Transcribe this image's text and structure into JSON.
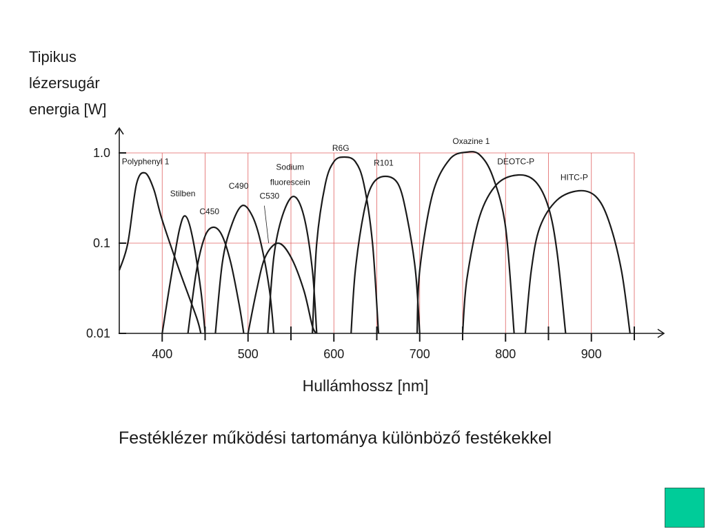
{
  "page": {
    "caption": "Festéklézer működési tartománya különböző festékekkel",
    "corner_box_color": "#00cc99"
  },
  "chart_data": {
    "type": "line",
    "ylabel_lines": [
      "Tipikus",
      "lézersugár",
      "energia [W]"
    ],
    "xlabel": "Hullámhossz [nm]",
    "x_range": [
      350,
      950
    ],
    "y_scale": "log",
    "y_range": [
      0.01,
      1.0
    ],
    "x_ticks": [
      400,
      500,
      600,
      700,
      800,
      900
    ],
    "x_minor_ticks": [
      450,
      550,
      650,
      750,
      850
    ],
    "x_tick_labels": [
      "400",
      "500",
      "600",
      "700",
      "800",
      "900"
    ],
    "y_ticks": [
      0.01,
      0.1,
      1.0
    ],
    "y_tick_labels": [
      "0.01",
      "0.1",
      "1.0"
    ],
    "grid": true,
    "grid_color": "#e06060",
    "curve_color": "#1a1a1a",
    "series": [
      {
        "name": "Polyphenyl 1",
        "x": [
          350,
          360,
          370,
          380,
          390,
          400,
          420,
          440,
          445
        ],
        "y": [
          0.05,
          0.1,
          0.45,
          0.6,
          0.4,
          0.18,
          0.05,
          0.015,
          0.01
        ]
      },
      {
        "name": "Stilben",
        "x": [
          400,
          410,
          420,
          427,
          435,
          445,
          450
        ],
        "y": [
          0.01,
          0.04,
          0.14,
          0.2,
          0.12,
          0.03,
          0.01
        ]
      },
      {
        "name": "C450",
        "x": [
          430,
          440,
          450,
          460,
          470,
          480,
          490,
          495
        ],
        "y": [
          0.01,
          0.05,
          0.12,
          0.15,
          0.12,
          0.06,
          0.02,
          0.01
        ]
      },
      {
        "name": "C490",
        "x": [
          462,
          470,
          480,
          493,
          505,
          515,
          525,
          530
        ],
        "y": [
          0.01,
          0.06,
          0.15,
          0.26,
          0.2,
          0.1,
          0.03,
          0.01
        ]
      },
      {
        "name": "C530",
        "x": [
          500,
          510,
          520,
          535,
          550,
          565,
          575,
          580
        ],
        "y": [
          0.01,
          0.03,
          0.07,
          0.1,
          0.07,
          0.03,
          0.012,
          0.01
        ]
      },
      {
        "name": "Sodium fluorescein",
        "x": [
          523,
          530,
          540,
          553,
          565,
          575,
          580
        ],
        "y": [
          0.01,
          0.07,
          0.2,
          0.33,
          0.2,
          0.05,
          0.01
        ]
      },
      {
        "name": "R6G",
        "x": [
          575,
          580,
          590,
          600,
          612,
          625,
          635,
          645,
          652
        ],
        "y": [
          0.01,
          0.1,
          0.45,
          0.8,
          0.9,
          0.8,
          0.45,
          0.1,
          0.01
        ]
      },
      {
        "name": "R101",
        "x": [
          620,
          625,
          635,
          645,
          660,
          675,
          685,
          695,
          700
        ],
        "y": [
          0.01,
          0.05,
          0.22,
          0.45,
          0.55,
          0.45,
          0.2,
          0.05,
          0.01
        ]
      },
      {
        "name": "Oxazine 1",
        "x": [
          697,
          700,
          715,
          735,
          755,
          770,
          785,
          800,
          810
        ],
        "y": [
          0.01,
          0.05,
          0.35,
          0.85,
          1.02,
          0.95,
          0.55,
          0.15,
          0.01
        ]
      },
      {
        "name": "DEOTC-P",
        "x": [
          750,
          755,
          770,
          790,
          815,
          835,
          850,
          860,
          870
        ],
        "y": [
          0.01,
          0.04,
          0.2,
          0.45,
          0.57,
          0.48,
          0.25,
          0.08,
          0.01
        ]
      },
      {
        "name": "HITC-P",
        "x": [
          823,
          830,
          840,
          860,
          885,
          905,
          920,
          935,
          945
        ],
        "y": [
          0.01,
          0.05,
          0.15,
          0.3,
          0.38,
          0.33,
          0.18,
          0.05,
          0.01
        ]
      }
    ],
    "annotations": [
      {
        "text": "Polyphenyl 1",
        "x": 353,
        "y": 0.75,
        "anchor": "start"
      },
      {
        "text": "Stilben",
        "x": 424,
        "y": 0.33,
        "anchor": "middle"
      },
      {
        "text": "C450",
        "x": 455,
        "y": 0.21,
        "anchor": "middle"
      },
      {
        "text": "C490",
        "x": 489,
        "y": 0.4,
        "anchor": "middle"
      },
      {
        "text": "C530",
        "x": 525,
        "y": 0.31,
        "anchor": "middle"
      },
      {
        "text": "Sodium",
        "x": 549,
        "y": 0.65,
        "anchor": "middle"
      },
      {
        "text": "fluorescein",
        "x": 549,
        "y": 0.44,
        "anchor": "middle"
      },
      {
        "text": "R6G",
        "x": 608,
        "y": 1.05,
        "anchor": "middle"
      },
      {
        "text": "R101",
        "x": 658,
        "y": 0.72,
        "anchor": "middle"
      },
      {
        "text": "Oxazine 1",
        "x": 760,
        "y": 1.26,
        "anchor": "middle"
      },
      {
        "text": "DEOTC-P",
        "x": 812,
        "y": 0.75,
        "anchor": "middle"
      },
      {
        "text": "HITC-P",
        "x": 880,
        "y": 0.5,
        "anchor": "middle"
      }
    ],
    "leader_line": {
      "from_x": 519,
      "from_y": 0.26,
      "to_x": 524,
      "to_y": 0.1
    }
  }
}
